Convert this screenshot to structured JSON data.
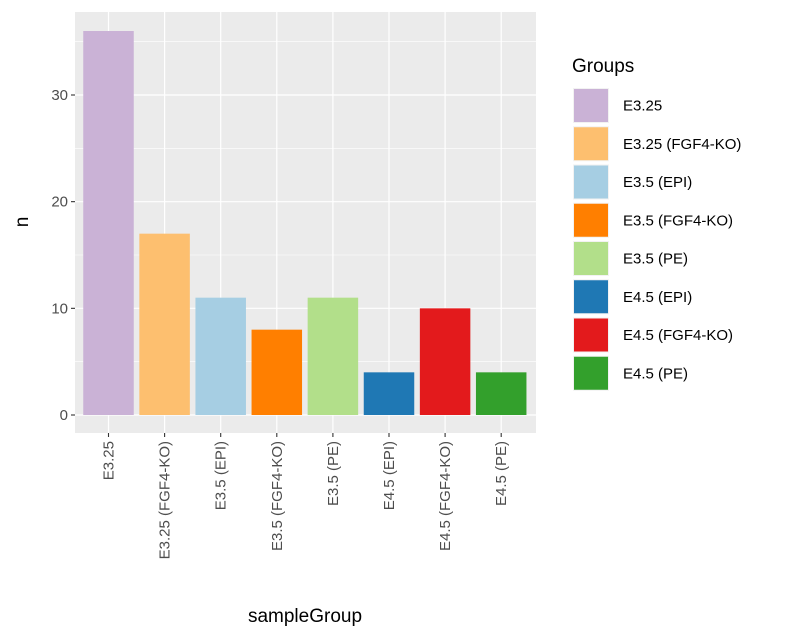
{
  "chart_data": {
    "type": "bar",
    "xlabel": "sampleGroup",
    "ylabel": "n",
    "ylim": [
      0,
      37.8
    ],
    "yticks": [
      0,
      10,
      20,
      30
    ],
    "grid": true,
    "legend_title": "Groups",
    "legend_position": "right",
    "categories": [
      "E3.25",
      "E3.25 (FGF4-KO)",
      "E3.5 (EPI)",
      "E3.5 (FGF4-KO)",
      "E3.5 (PE)",
      "E4.5 (EPI)",
      "E4.5 (FGF4-KO)",
      "E4.5 (PE)"
    ],
    "values": [
      36,
      17,
      11,
      8,
      11,
      4,
      10,
      4
    ],
    "colors": [
      "#cab2d6",
      "#fdbf6f",
      "#a6cee3",
      "#ff7f00",
      "#b2df8a",
      "#1f78b4",
      "#e31a1c",
      "#33a02c"
    ]
  }
}
